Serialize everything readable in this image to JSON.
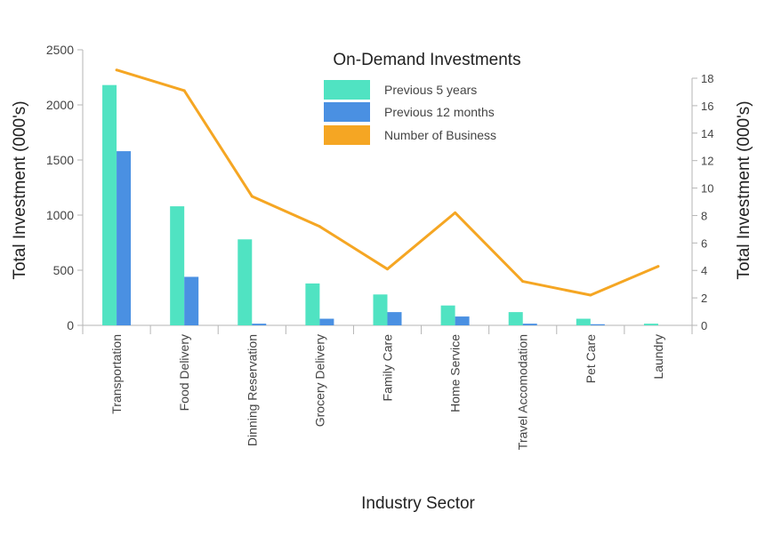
{
  "chart_data": {
    "type": "bar+line",
    "title": "On-Demand Investments",
    "xlabel": "Industry Sector",
    "ylabel_left": "Total Investment (000's)",
    "ylabel_right": "Total Investment (000's)",
    "ylim_left": [
      0,
      2500
    ],
    "yticks_left": [
      0,
      500,
      1000,
      1500,
      2000,
      2500
    ],
    "ylim_right": [
      0,
      18
    ],
    "yticks_right": [
      0,
      2,
      4,
      6,
      8,
      10,
      12,
      14,
      16,
      18
    ],
    "categories": [
      "Transportation",
      "Food Delivery",
      "Dinning Reservation",
      "Grocery Delivery",
      "Family Care",
      "Home Service",
      "Travel Accomodation",
      "Pet Care",
      "Laundry"
    ],
    "series": [
      {
        "name": "Previous 5 years",
        "type": "bar",
        "axis": "left",
        "color": "#50e3c2",
        "values": [
          2180,
          1080,
          780,
          380,
          280,
          180,
          120,
          60,
          15
        ]
      },
      {
        "name": "Previous 12 months",
        "type": "bar",
        "axis": "left",
        "color": "#4a90e2",
        "values": [
          1580,
          440,
          15,
          60,
          120,
          80,
          15,
          10,
          0
        ]
      },
      {
        "name": "Number of Business",
        "type": "line",
        "axis": "right",
        "color": "#f5a623",
        "values": [
          18.6,
          17.1,
          9.4,
          7.2,
          4.1,
          8.2,
          3.2,
          2.2,
          4.3
        ]
      }
    ],
    "grid": false,
    "legend_position": "top-center"
  }
}
